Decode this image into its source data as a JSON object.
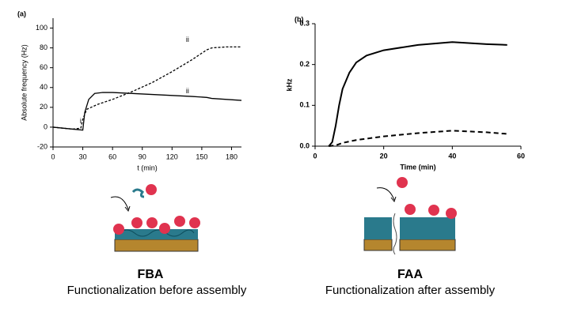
{
  "chart_data": [
    {
      "type": "line",
      "panel": "(a)",
      "xlabel": "t (min)",
      "ylabel": "Absolute frequency (Hz)",
      "xlim": [
        0,
        190
      ],
      "xticks": [
        0,
        30,
        60,
        90,
        120,
        150,
        180
      ],
      "ylim": [
        -20,
        110
      ],
      "yticks": [
        -20,
        0,
        20,
        40,
        60,
        80,
        100
      ],
      "series": [
        {
          "color": "#000000",
          "dash": false,
          "x": [
            0,
            10,
            20,
            30,
            32,
            36,
            42,
            50,
            60,
            80,
            100,
            120,
            140,
            155,
            160,
            175,
            190
          ],
          "values": [
            0,
            -1,
            -2,
            -3,
            15,
            28,
            34,
            35,
            35,
            34,
            33,
            32,
            31,
            30,
            29,
            28,
            27
          ]
        },
        {
          "color": "#000000",
          "dash": true,
          "x": [
            0,
            10,
            20,
            28,
            30,
            34,
            45,
            60,
            80,
            100,
            120,
            140,
            155,
            160,
            175,
            190
          ],
          "values": [
            0,
            -1,
            -2,
            -1,
            8,
            18,
            23,
            28,
            36,
            45,
            56,
            68,
            78,
            80,
            81,
            81
          ]
        }
      ],
      "annotations": [
        {
          "text": "i",
          "x": 27,
          "y": 6
        },
        {
          "text": "ii",
          "x": 134,
          "y": 88
        },
        {
          "text": "ii",
          "x": 134,
          "y": 36
        }
      ]
    },
    {
      "type": "line",
      "panel": "(b)",
      "xlabel": "Time (min)",
      "ylabel": "kHz",
      "xlim": [
        0,
        60
      ],
      "xticks": [
        0,
        20,
        40,
        60
      ],
      "ylim": [
        0,
        0.3
      ],
      "yticks": [
        {
          "value": 0,
          "label": "0.0"
        },
        0.1,
        0.2,
        0.3
      ],
      "series": [
        {
          "color": "#000000",
          "dash": false,
          "x": [
            4,
            5,
            6,
            7,
            8,
            10,
            12,
            15,
            20,
            30,
            40,
            50,
            56
          ],
          "values": [
            0,
            0.01,
            0.05,
            0.1,
            0.14,
            0.18,
            0.205,
            0.222,
            0.235,
            0.248,
            0.255,
            0.25,
            0.248
          ]
        },
        {
          "color": "#000000",
          "dash": true,
          "x": [
            4,
            6,
            8,
            12,
            20,
            30,
            40,
            50,
            56
          ],
          "values": [
            0,
            0.002,
            0.008,
            0.015,
            0.024,
            0.032,
            0.038,
            0.034,
            0.03
          ]
        }
      ]
    }
  ],
  "captions": [
    {
      "title": "FBA",
      "text": "Functionalization before assembly"
    },
    {
      "title": "FAA",
      "text": "Functionalization after assembly"
    }
  ]
}
